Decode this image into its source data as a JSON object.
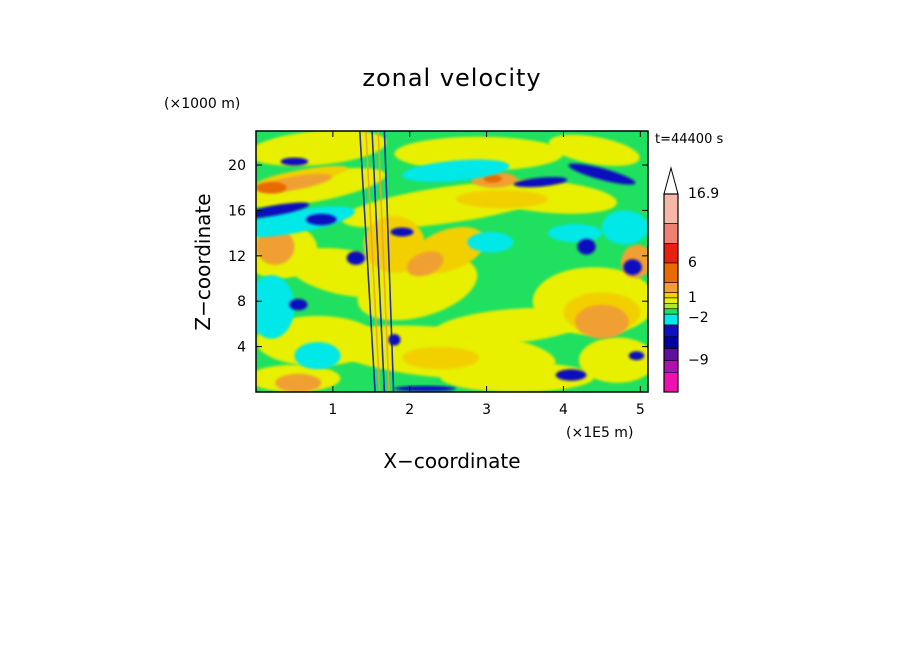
{
  "chart_data": {
    "type": "heatmap",
    "title": "zonal velocity",
    "xlabel": "X−coordinate",
    "ylabel": "Z−coordinate",
    "x_unit": "(×1E5 m)",
    "y_unit": "(×1000 m)",
    "time_label": "t=44400 s",
    "xlim": [
      0.0,
      5.1
    ],
    "ylim": [
      0.0,
      23.0
    ],
    "x_ticks": [
      "1",
      "2",
      "3",
      "4",
      "5"
    ],
    "x_tick_values": [
      1,
      2,
      3,
      4,
      5
    ],
    "y_ticks": [
      "4",
      "8",
      "12",
      "16",
      "20"
    ],
    "y_tick_values": [
      4,
      8,
      12,
      16,
      20
    ],
    "grid": false,
    "colorbar": {
      "labels": [
        "16.9",
        "6",
        "1",
        "−2",
        "−9"
      ],
      "colors_top_to_bottom": [
        "#f5b8a8",
        "#f08070",
        "#e82010",
        "#e86a00",
        "#f0a030",
        "#f2d000",
        "#e8f000",
        "#a0f030",
        "#20e060",
        "#00e8e8",
        "#1010c0",
        "#0000a0",
        "#6010a0",
        "#b010b0",
        "#f010b0"
      ],
      "extend_max": true
    },
    "field_description_colors": {
      "background": "#20e060",
      "positive_weak": "#e8f000",
      "positive_moderate": "#f2d000",
      "positive_strong": "#f0a030",
      "positive_core": "#e86a00",
      "negative_weak": "#00e8e8",
      "negative_strong": "#1010c0",
      "negative_core": "#0000a0"
    }
  }
}
